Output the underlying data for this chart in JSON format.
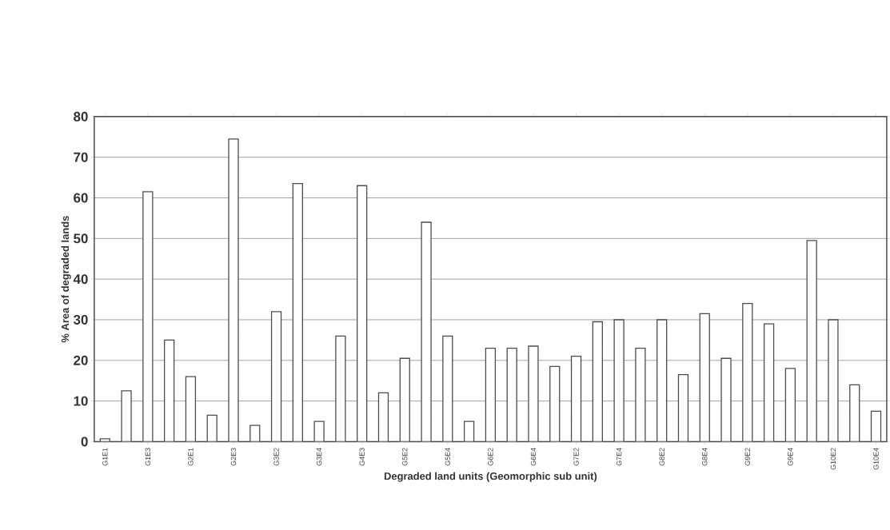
{
  "chart_data": {
    "type": "bar",
    "xlabel": "Degraded land units (Geomorphic sub unit)",
    "ylabel": "% Area of degraded lands",
    "categories": [
      "G1E1",
      null,
      "G1E3",
      null,
      "G2E1",
      null,
      "G2E3",
      null,
      "G3E2",
      null,
      "G3E4",
      null,
      "G4E3",
      null,
      "G5E2",
      null,
      "G5E4",
      null,
      "G6E2",
      null,
      "G6E4",
      null,
      "G7E2",
      null,
      "G7E4",
      null,
      "G8E2",
      null,
      "G8E4",
      null,
      "G9E2",
      null,
      "G9E4",
      null,
      "G10E2",
      null,
      "G10E4"
    ],
    "values": [
      0.7,
      12.5,
      61.5,
      25,
      16,
      6.5,
      74.5,
      4,
      32,
      63.5,
      5,
      26,
      63,
      12,
      20.5,
      54,
      26,
      5,
      23,
      23,
      23.5,
      18.5,
      21,
      29.5,
      30,
      23,
      30,
      16.5,
      31.5,
      20.5,
      34,
      29,
      18,
      49.5,
      30,
      14,
      7.5
    ],
    "color": "#ffffff",
    "ylim": [
      0,
      80
    ],
    "yticks": [
      0,
      10,
      20,
      30,
      40,
      50,
      60,
      70,
      80
    ],
    "grid": "y"
  }
}
